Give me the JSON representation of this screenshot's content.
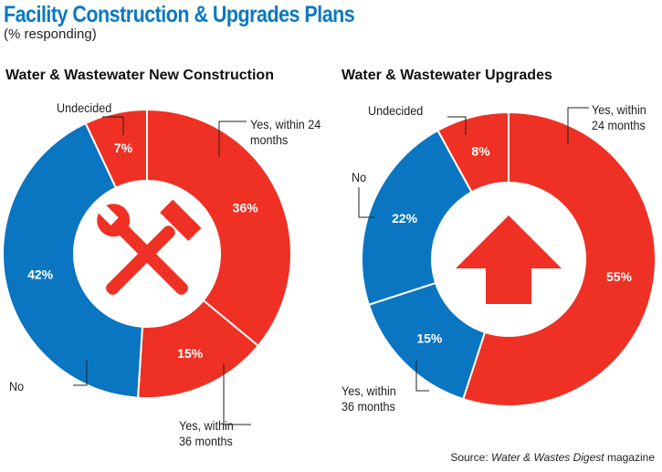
{
  "title": "Facility Construction & Upgrades Plans",
  "subtitle": "(% responding)",
  "source_prefix": "Source: ",
  "source_pub": "Water & Wastes Digest",
  "source_suffix": " magazine",
  "colors": {
    "red": "#ee3124",
    "blue": "#0a75c0"
  },
  "chart_data": [
    {
      "type": "pie",
      "title": "Water & Wastewater New Construction",
      "center_icon": "tools-icon",
      "categories": [
        "Yes, within 24 months",
        "Yes, within 36 months",
        "No",
        "Undecided"
      ],
      "values": [
        36,
        15,
        42,
        7
      ],
      "value_labels": [
        "36%",
        "15%",
        "42%",
        "7%"
      ],
      "colors": [
        "#ee3124",
        "#ee3124",
        "#0a75c0",
        "#ee3124"
      ]
    },
    {
      "type": "pie",
      "title": "Water & Wastewater Upgrades",
      "center_icon": "arrow-up-icon",
      "categories": [
        "Yes, within 24 months",
        "Yes, within 36 months",
        "No",
        "Undecided"
      ],
      "values": [
        55,
        15,
        22,
        8
      ],
      "value_labels": [
        "55%",
        "15%",
        "22%",
        "8%"
      ],
      "colors": [
        "#ee3124",
        "#0a75c0",
        "#0a75c0",
        "#ee3124"
      ]
    }
  ]
}
